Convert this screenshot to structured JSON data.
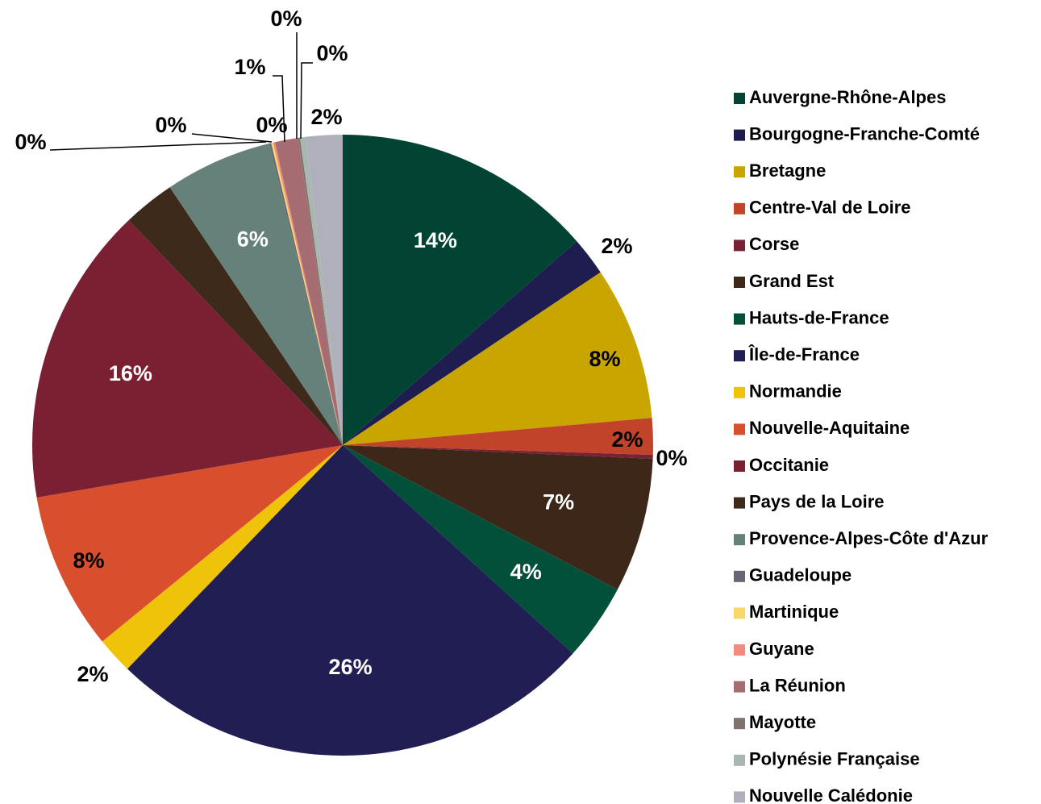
{
  "chart_data": {
    "type": "pie",
    "categories": [
      "Auvergne-Rhône-Alpes",
      "Bourgogne-Franche-Comté",
      "Bretagne",
      "Centre-Val de Loire",
      "Corse",
      "Grand Est",
      "Hauts-de-France",
      "Île-de-France",
      "Normandie",
      "Nouvelle-Aquitaine",
      "Occitanie",
      "Pays de la Loire",
      "Provence-Alpes-Côte d'Azur",
      "Guadeloupe",
      "Martinique",
      "Guyane",
      "La Réunion",
      "Mayotte",
      "Polynésie Française",
      "Nouvelle Calédonie"
    ],
    "values": [
      13.6,
      2.0,
      8.0,
      1.9,
      0.2,
      7.0,
      4.0,
      25.5,
      1.9,
      8.2,
      15.6,
      2.7,
      5.6,
      0.1,
      0.1,
      0.1,
      1.2,
      0.1,
      0.3,
      1.9
    ],
    "value_labels": [
      "14%",
      "2%",
      "8%",
      "2%",
      "0%",
      "7%",
      "4%",
      "26%",
      "2%",
      "8%",
      "16%",
      null,
      "6%",
      "0%",
      "0%",
      "0%",
      "1%",
      "0%",
      "0%",
      "2%"
    ],
    "colors": [
      "#024433",
      "#1f1c4f",
      "#c9a500",
      "#c1432a",
      "#7b1f33",
      "#3d2718",
      "#02503a",
      "#201e52",
      "#efc30a",
      "#d94f2e",
      "#7b1f33",
      "#3e2a1a",
      "#66807a",
      "#666677",
      "#f9d86b",
      "#f08c7d",
      "#a56c72",
      "#80736e",
      "#a8b8b0",
      "#b0b0bc"
    ],
    "legend": "right"
  }
}
